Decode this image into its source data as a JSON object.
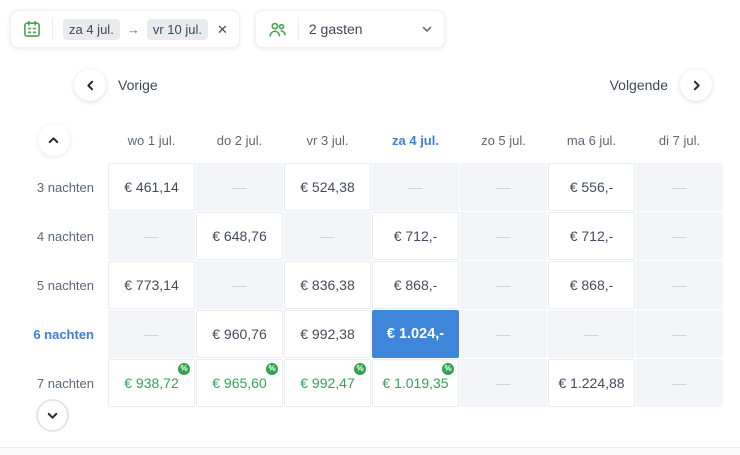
{
  "topbar": {
    "datepicker": {
      "start": "za 4 jul.",
      "arrow": "→",
      "end": "vr 10 jul.",
      "clear_glyph": "✕"
    },
    "guests": {
      "value": "2 gasten"
    }
  },
  "nav": {
    "prev_label": "Vorige",
    "next_label": "Volgende"
  },
  "table": {
    "empty_cell_text": "—",
    "columns": [
      {
        "label": "wo 1 jul.",
        "selected": false
      },
      {
        "label": "do 2 jul.",
        "selected": false
      },
      {
        "label": "vr 3 jul.",
        "selected": false
      },
      {
        "label": "za 4 jul.",
        "selected": true
      },
      {
        "label": "zo 5 jul.",
        "selected": false
      },
      {
        "label": "ma 6 jul.",
        "selected": false
      },
      {
        "label": "di 7 jul.",
        "selected": false
      }
    ],
    "rows": [
      {
        "label": "3 nachten",
        "selected": false,
        "cells": [
          {
            "type": "price",
            "text": "€ 461,14"
          },
          {
            "type": "empty"
          },
          {
            "type": "price",
            "text": "€ 524,38"
          },
          {
            "type": "empty"
          },
          {
            "type": "empty"
          },
          {
            "type": "price",
            "text": "€ 556,-"
          },
          {
            "type": "empty"
          }
        ]
      },
      {
        "label": "4 nachten",
        "selected": false,
        "cells": [
          {
            "type": "empty"
          },
          {
            "type": "price",
            "text": "€ 648,76"
          },
          {
            "type": "empty"
          },
          {
            "type": "price",
            "text": "€ 712,-"
          },
          {
            "type": "empty"
          },
          {
            "type": "price",
            "text": "€ 712,-"
          },
          {
            "type": "empty"
          }
        ]
      },
      {
        "label": "5 nachten",
        "selected": false,
        "cells": [
          {
            "type": "price",
            "text": "€ 773,14"
          },
          {
            "type": "empty"
          },
          {
            "type": "price",
            "text": "€ 836,38"
          },
          {
            "type": "price",
            "text": "€ 868,-"
          },
          {
            "type": "empty"
          },
          {
            "type": "price",
            "text": "€ 868,-"
          },
          {
            "type": "empty"
          }
        ]
      },
      {
        "label": "6 nachten",
        "selected": true,
        "cells": [
          {
            "type": "empty"
          },
          {
            "type": "price",
            "text": "€ 960,76"
          },
          {
            "type": "price",
            "text": "€ 992,38"
          },
          {
            "type": "selected",
            "text": "€ 1.024,-"
          },
          {
            "type": "empty"
          },
          {
            "type": "empty"
          },
          {
            "type": "empty"
          }
        ]
      },
      {
        "label": "7 nachten",
        "selected": false,
        "cells": [
          {
            "type": "deal",
            "text": "€ 938,72"
          },
          {
            "type": "deal",
            "text": "€ 965,60"
          },
          {
            "type": "deal",
            "text": "€ 992,47"
          },
          {
            "type": "deal",
            "text": "€ 1.019,35"
          },
          {
            "type": "empty"
          },
          {
            "type": "price",
            "text": "€ 1.224,88"
          },
          {
            "type": "empty"
          }
        ]
      }
    ]
  },
  "icons": {
    "deal_badge_glyph": "%"
  },
  "colors": {
    "accent_blue": "#3d86d9",
    "accent_green": "#36a257",
    "badge_green": "#2ea44f",
    "icon_green": "#47a14f"
  }
}
